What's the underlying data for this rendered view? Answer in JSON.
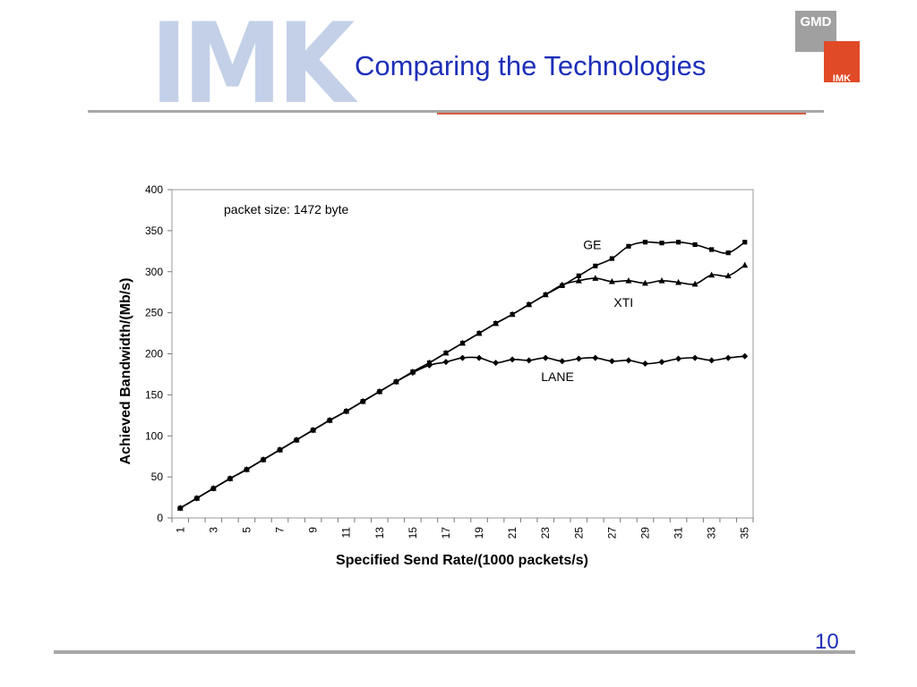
{
  "header": {
    "logo_text": "IMK",
    "title": "Comparing the Technologies",
    "gmd_logo_top": "GMD",
    "gmd_logo_bottom": "IMK"
  },
  "footer": {
    "page_number": "10"
  },
  "chart_data": {
    "type": "line",
    "title": "",
    "xlabel": "Specified Send Rate/(1000 packets/s)",
    "ylabel": "Achieved Bandwidth/(Mb/s)",
    "annotation": "packet size: 1472 byte",
    "x": [
      1,
      2,
      3,
      4,
      5,
      6,
      7,
      8,
      9,
      10,
      11,
      12,
      13,
      14,
      15,
      16,
      17,
      18,
      19,
      20,
      21,
      22,
      23,
      24,
      25,
      26,
      27,
      28,
      29,
      30,
      31,
      32,
      33,
      34,
      35
    ],
    "x_tick_labels": [
      "1",
      "3",
      "5",
      "7",
      "9",
      "11",
      "13",
      "15",
      "17",
      "19",
      "21",
      "23",
      "25",
      "27",
      "29",
      "31",
      "33",
      "35"
    ],
    "ylim": [
      0,
      400
    ],
    "y_ticks": [
      0,
      50,
      100,
      150,
      200,
      250,
      300,
      350,
      400
    ],
    "grid": false,
    "legend": "none",
    "series": [
      {
        "name": "GE",
        "marker": "square",
        "values": [
          12,
          24,
          36,
          48,
          59,
          71,
          83,
          95,
          107,
          119,
          130,
          142,
          154,
          166,
          178,
          189,
          201,
          213,
          225,
          237,
          248,
          260,
          272,
          283,
          295,
          307,
          316,
          331,
          336,
          335,
          336,
          333,
          327,
          323,
          336
        ]
      },
      {
        "name": "XTI",
        "marker": "triangle",
        "values": [
          12,
          24,
          36,
          48,
          59,
          71,
          83,
          95,
          107,
          119,
          130,
          142,
          154,
          166,
          178,
          189,
          201,
          213,
          225,
          237,
          248,
          260,
          272,
          284,
          289,
          292,
          288,
          289,
          286,
          289,
          287,
          285,
          296,
          295,
          308
        ]
      },
      {
        "name": "LANE",
        "marker": "diamond",
        "values": [
          12,
          24,
          36,
          48,
          59,
          71,
          83,
          95,
          107,
          119,
          130,
          142,
          154,
          166,
          177,
          186,
          190,
          195,
          195,
          189,
          193,
          192,
          195,
          191,
          194,
          195,
          191,
          192,
          188,
          190,
          194,
          195,
          192,
          195,
          197
        ]
      }
    ]
  }
}
